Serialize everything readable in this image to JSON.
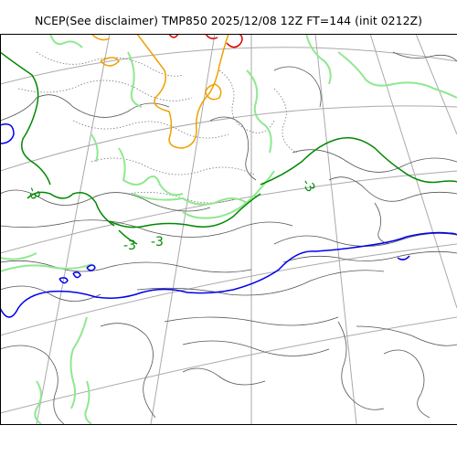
{
  "title": "NCEP(See disclaimer) TMP850 2025/12/08 12Z FT=144 (init 0212Z)",
  "map": {
    "variable": "TMP850",
    "valid_time": "2025/12/08 12Z",
    "forecast_hour": "FT=144",
    "init": "init 0212Z",
    "contour_labels": [
      {
        "text": "-3",
        "color_key": "green"
      },
      {
        "text": "-3",
        "color_key": "green"
      },
      {
        "text": "-3",
        "color_key": "green"
      },
      {
        "text": "-3",
        "color_key": "green"
      }
    ],
    "colors": {
      "thin_contour": "#555555",
      "dotted_contour": "#777777",
      "green": "#008800",
      "light_green": "#90e890",
      "blue": "#0000ee",
      "orange": "#f0a000",
      "red": "#dd0000",
      "graticule": "#aaaaaa",
      "frame": "#000000"
    }
  }
}
